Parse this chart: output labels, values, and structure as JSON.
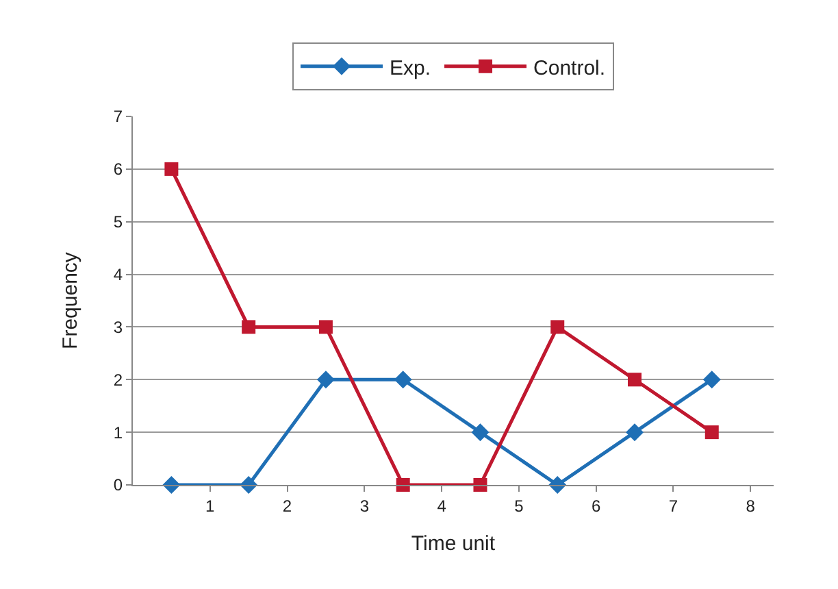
{
  "chart_data": {
    "type": "line",
    "xlabel": "Time unit",
    "ylabel": "Frequency",
    "x": [
      0.5,
      1.5,
      2.5,
      3.5,
      4.5,
      5.5,
      6.5,
      7.5
    ],
    "series": [
      {
        "name": "Exp.",
        "color": "#1f6fb5",
        "marker": "diamond",
        "values": [
          0,
          0,
          2,
          2,
          1,
          0,
          1,
          2
        ]
      },
      {
        "name": "Control.",
        "color": "#c0182f",
        "marker": "square",
        "values": [
          6,
          3,
          3,
          0,
          0,
          3,
          2,
          1
        ]
      }
    ],
    "xlim": [
      0,
      8.3
    ],
    "xticks": [
      1,
      2,
      3,
      4,
      5,
      6,
      7,
      8
    ],
    "ylim": [
      0,
      7
    ],
    "yticks": [
      0,
      1,
      2,
      3,
      4,
      5,
      6,
      7
    ],
    "grid": "y",
    "legend": "top",
    "line_style": "solid"
  }
}
